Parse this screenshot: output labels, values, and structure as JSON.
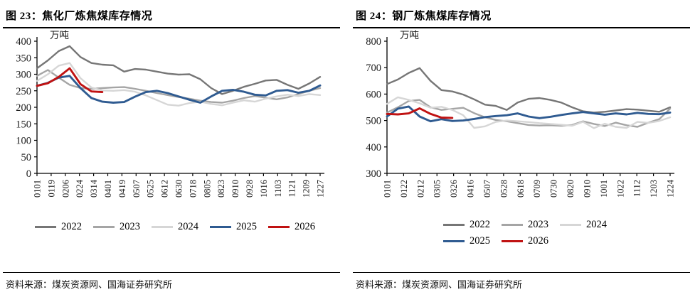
{
  "figures": [
    {
      "source": "资料来源：煤炭资源网、国海证券研究所"
    },
    {
      "source": "资料来源：煤炭资源网、国海证券研究所"
    }
  ],
  "colors": {
    "axis": "#000000",
    "year2022": "#767676",
    "year2023": "#a5a5a5",
    "year2024": "#d6d6d6",
    "year2025": "#2f5b91",
    "year2026": "#c01212"
  },
  "chart_data": [
    {
      "type": "line",
      "title": "图 23：焦化厂炼焦煤库存情况",
      "unit": "万吨",
      "xlabel": "",
      "ylabel": "万吨",
      "ylim": [
        0,
        400
      ],
      "y_step": 50,
      "grid": false,
      "legend_position": "bottom",
      "legend_rows": [
        [
          "2022",
          "2023",
          "2024",
          "2025",
          "2026"
        ]
      ],
      "x_tick_labels": [
        "0101",
        "0119",
        "0206",
        "0224",
        "0314",
        "0401",
        "0419",
        "0507",
        "0525",
        "0612",
        "0630",
        "0718",
        "0805",
        "0823",
        "0910",
        "0928",
        "1016",
        "1103",
        "1121",
        "1209",
        "1227"
      ],
      "series": [
        {
          "name": "2022",
          "color": "#767676",
          "values": [
            318,
            342,
            370,
            385,
            352,
            334,
            329,
            327,
            308,
            316,
            314,
            308,
            302,
            299,
            300,
            285,
            258,
            240,
            250,
            262,
            271,
            281,
            283,
            268,
            256,
            272,
            292
          ]
        },
        {
          "name": "2023",
          "color": "#a5a5a5",
          "values": [
            295,
            313,
            290,
            268,
            258,
            256,
            258,
            260,
            261,
            256,
            250,
            243,
            237,
            231,
            226,
            220,
            216,
            214,
            220,
            228,
            234,
            229,
            224,
            230,
            240,
            250,
            258
          ]
        },
        {
          "name": "2024",
          "color": "#d6d6d6",
          "values": [
            280,
            300,
            326,
            334,
            288,
            260,
            251,
            250,
            252,
            247,
            236,
            222,
            208,
            205,
            213,
            217,
            210,
            206,
            214,
            221,
            217,
            226,
            233,
            238,
            234,
            240,
            237
          ]
        },
        {
          "name": "2025",
          "color": "#2f5b91",
          "values": [
            265,
            274,
            290,
            295,
            258,
            228,
            217,
            214,
            216,
            232,
            246,
            250,
            243,
            233,
            223,
            214,
            233,
            250,
            253,
            247,
            238,
            236,
            250,
            252,
            244,
            250,
            266
          ]
        },
        {
          "name": "2026",
          "color": "#c01212",
          "values": [
            265,
            273,
            292,
            318,
            270,
            248,
            246,
            null,
            null,
            null,
            null,
            null,
            null,
            null,
            null,
            null,
            null,
            null,
            null,
            null,
            null,
            null,
            null,
            null,
            null,
            null,
            null
          ]
        }
      ]
    },
    {
      "type": "line",
      "title": "图 24：钢厂炼焦煤库存情况",
      "unit": "万吨",
      "xlabel": "",
      "ylabel": "万吨",
      "ylim": [
        300,
        800
      ],
      "y_step": 100,
      "grid": false,
      "legend_position": "bottom",
      "legend_rows": [
        [
          "2022",
          "2023",
          "2024"
        ],
        [
          "2025",
          "2026"
        ]
      ],
      "x_tick_labels": [
        "0101",
        "0122",
        "0212",
        "0305",
        "0326",
        "0416",
        "0507",
        "0528",
        "0618",
        "0709",
        "0730",
        "0820",
        "0910",
        "1001",
        "1022",
        "1112",
        "1203",
        "1224"
      ],
      "series": [
        {
          "name": "2022",
          "color": "#767676",
          "values": [
            638,
            655,
            680,
            698,
            650,
            615,
            610,
            598,
            580,
            560,
            555,
            540,
            568,
            582,
            585,
            578,
            568,
            550,
            535,
            530,
            533,
            538,
            543,
            541,
            537,
            533,
            550
          ]
        },
        {
          "name": "2023",
          "color": "#a5a5a5",
          "values": [
            530,
            550,
            574,
            578,
            550,
            540,
            544,
            548,
            528,
            512,
            502,
            497,
            490,
            483,
            481,
            482,
            480,
            483,
            497,
            487,
            479,
            492,
            482,
            476,
            492,
            505,
            545
          ]
        },
        {
          "name": "2024",
          "color": "#d6d6d6",
          "values": [
            563,
            588,
            578,
            565,
            548,
            552,
            540,
            520,
            472,
            478,
            495,
            500,
            497,
            494,
            490,
            487,
            484,
            480,
            495,
            471,
            488,
            476,
            472,
            495,
            491,
            498,
            512
          ]
        },
        {
          "name": "2025",
          "color": "#2f5b91",
          "values": [
            515,
            545,
            553,
            515,
            497,
            505,
            498,
            500,
            506,
            513,
            517,
            520,
            527,
            515,
            509,
            514,
            521,
            527,
            532,
            527,
            522,
            527,
            523,
            529,
            525,
            524,
            530
          ]
        },
        {
          "name": "2026",
          "color": "#c01212",
          "values": [
            525,
            523,
            527,
            546,
            525,
            511,
            510,
            null,
            null,
            null,
            null,
            null,
            null,
            null,
            null,
            null,
            null,
            null,
            null,
            null,
            null,
            null,
            null,
            null,
            null,
            null,
            null
          ]
        }
      ]
    }
  ]
}
